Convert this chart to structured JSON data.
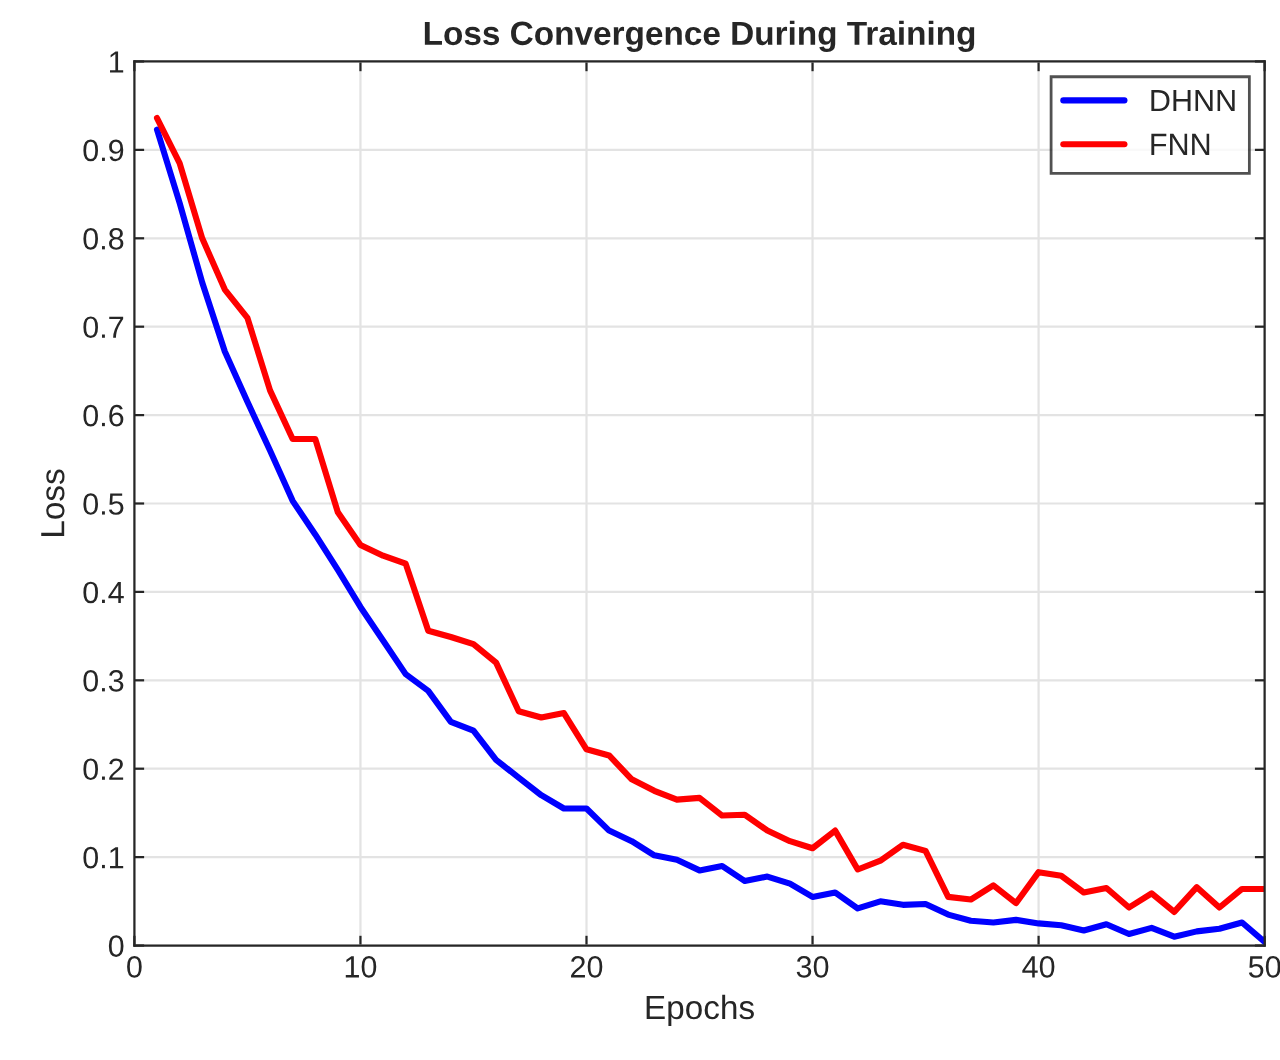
{
  "chart_data": {
    "type": "line",
    "title": "Loss Convergence During Training",
    "xlabel": "Epochs",
    "ylabel": "Loss",
    "x": [
      1,
      2,
      3,
      4,
      5,
      6,
      7,
      8,
      9,
      10,
      11,
      12,
      13,
      14,
      15,
      16,
      17,
      18,
      19,
      20,
      21,
      22,
      23,
      24,
      25,
      26,
      27,
      28,
      29,
      30,
      31,
      32,
      33,
      34,
      35,
      36,
      37,
      38,
      39,
      40,
      41,
      42,
      43,
      44,
      45,
      46,
      47,
      48,
      49,
      50
    ],
    "series": [
      {
        "name": "DHNN",
        "color": "#0000ff",
        "values": [
          0.923,
          0.84,
          0.75,
          0.672,
          0.615,
          0.56,
          0.503,
          0.465,
          0.425,
          0.383,
          0.345,
          0.307,
          0.288,
          0.253,
          0.243,
          0.21,
          0.19,
          0.17,
          0.155,
          0.155,
          0.13,
          0.118,
          0.102,
          0.097,
          0.085,
          0.09,
          0.073,
          0.078,
          0.07,
          0.055,
          0.06,
          0.042,
          0.05,
          0.046,
          0.047,
          0.035,
          0.028,
          0.026,
          0.029,
          0.025,
          0.023,
          0.017,
          0.024,
          0.013,
          0.02,
          0.01,
          0.016,
          0.019,
          0.026,
          0.004
        ]
      },
      {
        "name": "FNN",
        "color": "#ff0000",
        "values": [
          0.936,
          0.885,
          0.8,
          0.742,
          0.71,
          0.628,
          0.573,
          0.573,
          0.49,
          0.453,
          0.441,
          0.432,
          0.356,
          0.349,
          0.341,
          0.32,
          0.265,
          0.258,
          0.263,
          0.222,
          0.215,
          0.188,
          0.175,
          0.165,
          0.167,
          0.147,
          0.148,
          0.13,
          0.118,
          0.11,
          0.13,
          0.086,
          0.096,
          0.114,
          0.107,
          0.055,
          0.052,
          0.068,
          0.048,
          0.083,
          0.079,
          0.06,
          0.065,
          0.043,
          0.059,
          0.038,
          0.066,
          0.043,
          0.064,
          0.064
        ]
      }
    ],
    "xlim": [
      0,
      50
    ],
    "xticks": [
      0,
      10,
      20,
      30,
      40,
      50
    ],
    "ylim": [
      0,
      1
    ],
    "yticks": [
      0,
      0.1,
      0.2,
      0.3,
      0.4,
      0.5,
      0.6,
      0.7,
      0.8,
      0.9,
      1
    ],
    "grid": true,
    "legend": "top right",
    "marker": "none",
    "line_style": "solid"
  }
}
